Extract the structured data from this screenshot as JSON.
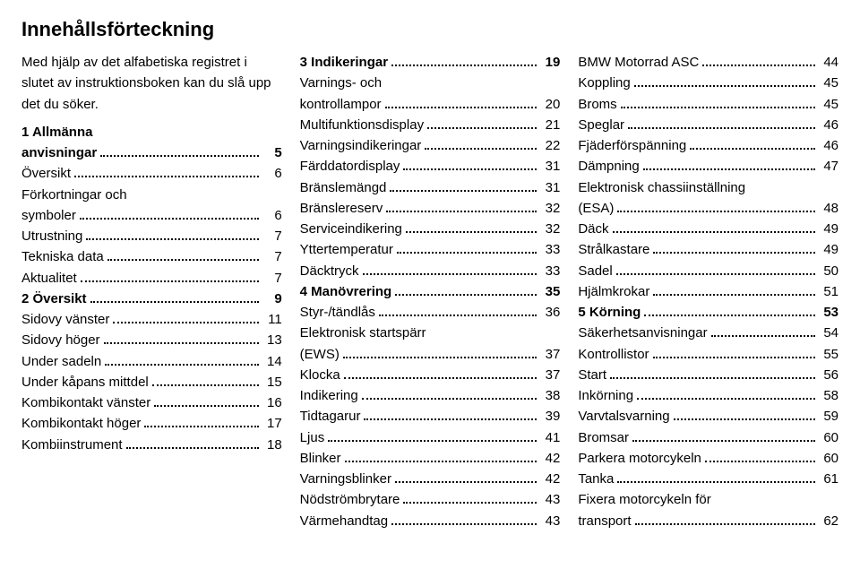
{
  "title": "Innehållsförteckning",
  "intro": "Med hjälp av det alfabetiska registret i slutet av instruktionsboken kan du slå upp det du söker.",
  "columns": [
    [
      {
        "label": "1 Allmänna anvisningar",
        "page": "5",
        "bold": true,
        "multi": true
      },
      {
        "label": "Översikt",
        "page": "6"
      },
      {
        "label": "Förkortningar och symboler",
        "page": "6",
        "multi": true
      },
      {
        "label": "Utrustning",
        "page": "7"
      },
      {
        "label": "Tekniska data",
        "page": "7"
      },
      {
        "label": "Aktualitet",
        "page": "7"
      },
      {
        "label": "2 Översikt",
        "page": "9",
        "bold": true
      },
      {
        "label": "Sidovy vänster",
        "page": "11"
      },
      {
        "label": "Sidovy höger",
        "page": "13"
      },
      {
        "label": "Under sadeln",
        "page": "14"
      },
      {
        "label": "Under kåpans mittdel",
        "page": "15"
      },
      {
        "label": "Kombikontakt vänster",
        "page": "16"
      },
      {
        "label": "Kombikontakt höger",
        "page": "17"
      },
      {
        "label": "Kombiinstrument",
        "page": "18"
      }
    ],
    [
      {
        "label": "3 Indikeringar",
        "page": "19",
        "bold": true
      },
      {
        "label": "Varnings- och kontrollampor",
        "page": "20",
        "multi": true
      },
      {
        "label": "Multifunktionsdisplay",
        "page": "21"
      },
      {
        "label": "Varningsindikeringar",
        "page": "22"
      },
      {
        "label": "Färddatordisplay",
        "page": "31"
      },
      {
        "label": "Bränslemängd",
        "page": "31"
      },
      {
        "label": "Bränslereserv",
        "page": "32"
      },
      {
        "label": "Serviceindikering",
        "page": "32"
      },
      {
        "label": "Yttertemperatur",
        "page": "33"
      },
      {
        "label": "Däcktryck",
        "page": "33"
      },
      {
        "label": "4 Manövrering",
        "page": "35",
        "bold": true
      },
      {
        "label": "Styr-/tändlås",
        "page": "36"
      },
      {
        "label": "Elektronisk startspärr (EWS)",
        "page": "37",
        "multi": true
      },
      {
        "label": "Klocka",
        "page": "37"
      },
      {
        "label": "Indikering",
        "page": "38"
      },
      {
        "label": "Tidtagarur",
        "page": "39"
      },
      {
        "label": "Ljus",
        "page": "41"
      },
      {
        "label": "Blinker",
        "page": "42"
      },
      {
        "label": "Varningsblinker",
        "page": "42"
      },
      {
        "label": "Nödströmbrytare",
        "page": "43"
      },
      {
        "label": "Värmehandtag",
        "page": "43"
      }
    ],
    [
      {
        "label": "BMW Motorrad ASC",
        "page": "44"
      },
      {
        "label": "Koppling",
        "page": "45"
      },
      {
        "label": "Broms",
        "page": "45"
      },
      {
        "label": "Speglar",
        "page": "46"
      },
      {
        "label": "Fjäderförspänning",
        "page": "46"
      },
      {
        "label": "Dämpning",
        "page": "47"
      },
      {
        "label": "Elektronisk chassiinställning (ESA)",
        "page": "48",
        "multi": true
      },
      {
        "label": "Däck",
        "page": "49"
      },
      {
        "label": "Strålkastare",
        "page": "49"
      },
      {
        "label": "Sadel",
        "page": "50"
      },
      {
        "label": "Hjälmkrokar",
        "page": "51"
      },
      {
        "label": "5 Körning",
        "page": "53",
        "bold": true
      },
      {
        "label": "Säkerhetsanvisningar",
        "page": "54"
      },
      {
        "label": "Kontrollistor",
        "page": "55"
      },
      {
        "label": "Start",
        "page": "56"
      },
      {
        "label": "Inkörning",
        "page": "58"
      },
      {
        "label": "Varvtalsvarning",
        "page": "59"
      },
      {
        "label": "Bromsar",
        "page": "60"
      },
      {
        "label": "Parkera motorcykeln",
        "page": "60"
      },
      {
        "label": "Tanka",
        "page": "61"
      },
      {
        "label": "Fixera motorcykeln för transport",
        "page": "62",
        "multi": true
      }
    ]
  ]
}
